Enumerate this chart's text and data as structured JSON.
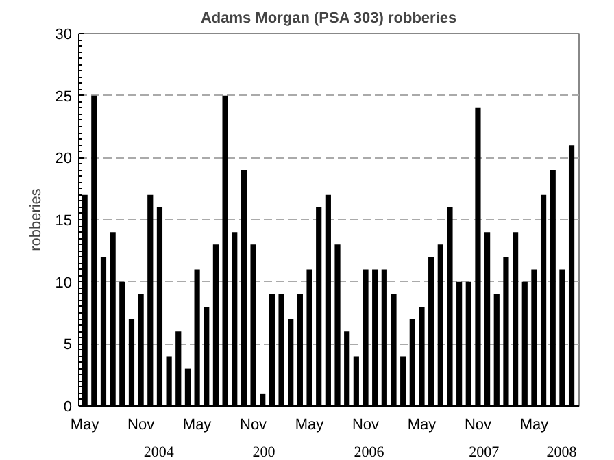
{
  "chart_data": {
    "type": "bar",
    "title": "Adams Morgan (PSA 303) robberies",
    "ylabel": "robberies",
    "x": [
      "2004-05",
      "2004-06",
      "2004-07",
      "2004-08",
      "2004-09",
      "2004-10",
      "2004-11",
      "2004-12",
      "2005-01",
      "2005-02",
      "2005-03",
      "2005-04",
      "2005-05",
      "2005-06",
      "2005-07",
      "2005-08",
      "2005-09",
      "2005-10",
      "2005-11",
      "2005-12",
      "2006-01",
      "2006-02",
      "2006-03",
      "2006-04",
      "2006-05",
      "2006-06",
      "2006-07",
      "2006-08",
      "2006-09",
      "2006-10",
      "2006-11",
      "2006-12",
      "2007-01",
      "2007-02",
      "2007-03",
      "2007-04",
      "2007-05",
      "2007-06",
      "2007-07",
      "2007-08",
      "2007-09",
      "2007-10",
      "2007-11",
      "2007-12",
      "2008-01",
      "2008-02",
      "2008-03",
      "2008-04",
      "2008-05",
      "2008-06",
      "2008-07",
      "2008-08",
      "2008-09"
    ],
    "values": [
      17,
      25,
      12,
      14,
      10,
      7,
      9,
      17,
      16,
      4,
      6,
      3,
      11,
      8,
      13,
      25,
      14,
      19,
      13,
      1,
      9,
      9,
      7,
      9,
      11,
      16,
      17,
      13,
      6,
      4,
      11,
      11,
      11,
      9,
      4,
      7,
      8,
      12,
      13,
      16,
      10,
      10,
      24,
      14,
      9,
      12,
      14,
      10,
      11,
      17,
      19,
      11,
      21
    ],
    "color": "#000000",
    "xlim": [
      "2004-04-12",
      "2008-09-25"
    ],
    "xticks": [
      {
        "value": "2004-05",
        "label": "May"
      },
      {
        "value": "2004-11",
        "label": "Nov"
      },
      {
        "value": "2005-05",
        "label": "May"
      },
      {
        "value": "2005-11",
        "label": "Nov"
      },
      {
        "value": "2006-05",
        "label": "May"
      },
      {
        "value": "2006-11",
        "label": "Nov"
      },
      {
        "value": "2007-05",
        "label": "May"
      },
      {
        "value": "2007-11",
        "label": "Nov"
      },
      {
        "value": "2008-05",
        "label": "May"
      }
    ],
    "ylim": [
      0,
      30
    ],
    "yticks": [
      0,
      5,
      10,
      15,
      20,
      25,
      30
    ],
    "grid": "y",
    "annotations": [
      "2004",
      "200",
      "2006",
      "2007",
      "2008"
    ]
  }
}
